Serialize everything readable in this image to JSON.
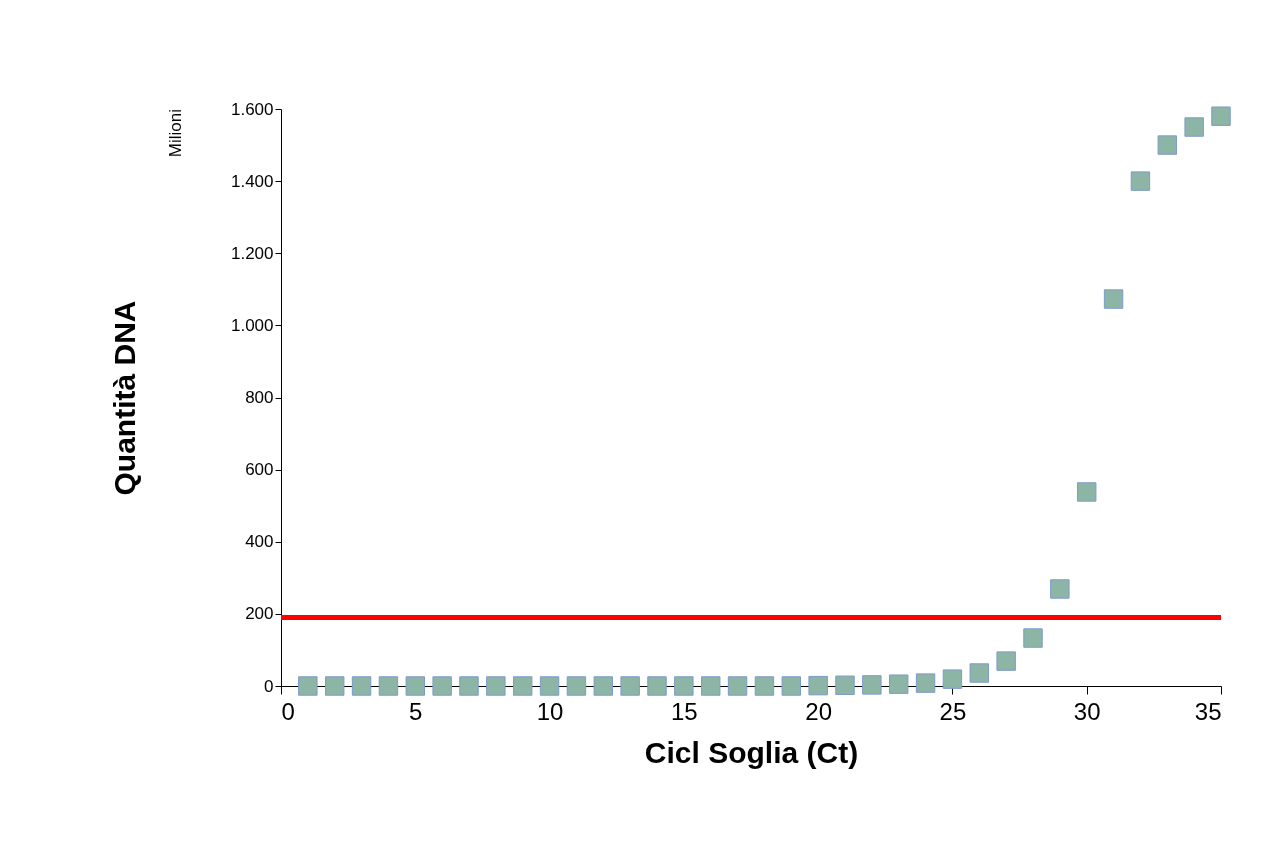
{
  "chart_data": {
    "type": "scatter",
    "xlabel": "Cicl Soglia (Ct)",
    "ylabel": "Quantità DNA",
    "annotations": [
      "Milioni"
    ],
    "x": [
      1,
      2,
      3,
      4,
      5,
      6,
      7,
      8,
      9,
      10,
      11,
      12,
      13,
      14,
      15,
      16,
      17,
      18,
      19,
      20,
      21,
      22,
      23,
      24,
      25,
      26,
      27,
      28,
      29,
      30,
      31,
      32,
      33,
      34,
      35
    ],
    "series": [
      {
        "color": "#8db5a6",
        "values": [
          0,
          0,
          0,
          0,
          0,
          0,
          0,
          0,
          0,
          0,
          0,
          0,
          0,
          0,
          0,
          0,
          0,
          0,
          0,
          1,
          2,
          3,
          5,
          8,
          19,
          36,
          69,
          133,
          269,
          538,
          1073,
          1400,
          1500,
          1550,
          1580
        ]
      }
    ],
    "marker": "square",
    "xlim": [
      0,
      35
    ],
    "xticks": [
      0,
      5,
      10,
      15,
      20,
      25,
      30,
      35
    ],
    "ylim": [
      0,
      1600
    ],
    "yticks": [
      0,
      {
        "value": 200,
        "label": "200"
      },
      {
        "value": 400,
        "label": "400"
      },
      {
        "value": 600,
        "label": "600"
      },
      {
        "value": 800,
        "label": "800"
      },
      {
        "value": 1000,
        "label": "1.000"
      },
      {
        "value": 1200,
        "label": "1.200"
      },
      {
        "value": 1400,
        "label": "1.400"
      },
      {
        "value": 1600,
        "label": "1.600"
      }
    ],
    "ref_lines": [
      {
        "axis": "y",
        "value": 190,
        "color": "#ff0000"
      }
    ],
    "grid": false
  }
}
